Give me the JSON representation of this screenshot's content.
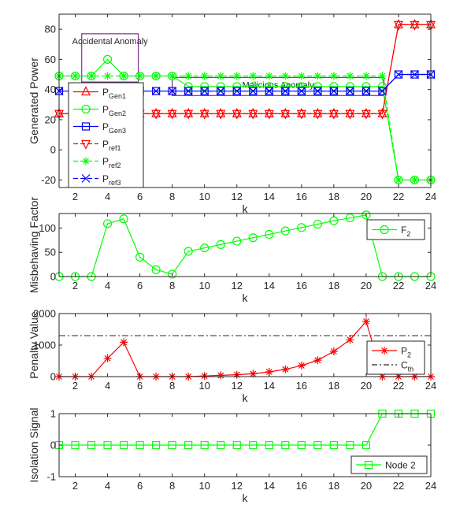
{
  "chart_data": [
    {
      "type": "line",
      "ylabel": "Generated Power",
      "xlabel": "k",
      "xlim": [
        1,
        24
      ],
      "ylim": [
        -25,
        90
      ],
      "xticks": [
        2,
        4,
        6,
        8,
        10,
        12,
        14,
        16,
        18,
        20,
        22,
        24
      ],
      "yticks": [
        -20,
        0,
        20,
        40,
        60,
        80
      ],
      "x": [
        1,
        2,
        3,
        4,
        5,
        6,
        7,
        8,
        9,
        10,
        11,
        12,
        13,
        14,
        15,
        16,
        17,
        18,
        19,
        20,
        21,
        22,
        23,
        24
      ],
      "series": [
        {
          "name": "P_Gen1",
          "color": "#ff0000",
          "marker": "triangle-up",
          "style": "solid",
          "values": [
            24,
            24,
            24,
            24,
            24,
            24,
            24,
            24,
            24,
            24,
            24,
            24,
            24,
            24,
            24,
            24,
            24,
            24,
            24,
            24,
            24,
            83,
            83,
            83
          ]
        },
        {
          "name": "P_Gen2",
          "color": "#00ff00",
          "marker": "circle",
          "style": "solid",
          "values": [
            49,
            49,
            49,
            60,
            49,
            49,
            49,
            49,
            42,
            42,
            42,
            42,
            42,
            42,
            42,
            42,
            42,
            42,
            42,
            42,
            42,
            -20,
            -20,
            -20
          ]
        },
        {
          "name": "P_Gen3",
          "color": "#0000ff",
          "marker": "square",
          "style": "solid",
          "values": [
            39,
            39,
            39,
            39,
            39,
            39,
            39,
            39,
            39,
            39,
            39,
            39,
            39,
            39,
            39,
            39,
            39,
            39,
            39,
            39,
            39,
            50,
            50,
            50
          ]
        },
        {
          "name": "P_ref1",
          "color": "#ff0000",
          "marker": "triangle-down",
          "style": "dashed",
          "values": [
            24,
            24,
            24,
            24,
            24,
            24,
            24,
            24,
            24,
            24,
            24,
            24,
            24,
            24,
            24,
            24,
            24,
            24,
            24,
            24,
            24,
            83,
            83,
            83
          ]
        },
        {
          "name": "P_ref2",
          "color": "#00ff00",
          "marker": "star",
          "style": "dashed",
          "values": [
            49,
            49,
            49,
            49,
            49,
            49,
            49,
            49,
            49,
            49,
            49,
            49,
            49,
            49,
            49,
            49,
            49,
            49,
            49,
            49,
            49,
            -20,
            -20,
            -20
          ]
        },
        {
          "name": "P_ref3",
          "color": "#0000ff",
          "marker": "x",
          "style": "dashed",
          "values": [
            39,
            39,
            39,
            39,
            39,
            39,
            39,
            39,
            39,
            39,
            39,
            39,
            39,
            39,
            39,
            39,
            39,
            39,
            39,
            39,
            39,
            50,
            50,
            50
          ]
        }
      ],
      "legend": {
        "location": "left",
        "entries": [
          {
            "main": "P",
            "sub": "Gen1"
          },
          {
            "main": "P",
            "sub": "Gen2"
          },
          {
            "main": "P",
            "sub": "Gen3"
          },
          {
            "main": "P",
            "sub": "ref1"
          },
          {
            "main": "P",
            "sub": "ref2"
          },
          {
            "main": "P",
            "sub": "ref3"
          }
        ]
      },
      "annotations": [
        {
          "text": "Accidental Anomaly",
          "box_x": [
            2.4,
            5.9
          ],
          "box_y": [
            45,
            77
          ],
          "box_color": "#7e2f8e"
        },
        {
          "text": "Malicious Anomaly",
          "box_x": [
            8,
            21.1
          ],
          "box_y": [
            36,
            48
          ],
          "box_color": "#7e2f8e"
        }
      ]
    },
    {
      "type": "line",
      "ylabel": "Misbehaving Factor",
      "xlabel": "k",
      "xlim": [
        1,
        24
      ],
      "ylim": [
        0,
        130
      ],
      "xticks": [
        2,
        4,
        6,
        8,
        10,
        12,
        14,
        16,
        18,
        20,
        22,
        24
      ],
      "yticks": [
        0,
        50,
        100
      ],
      "x": [
        1,
        2,
        3,
        4,
        5,
        6,
        7,
        8,
        9,
        10,
        11,
        12,
        13,
        14,
        15,
        16,
        17,
        18,
        19,
        20,
        21,
        22,
        23,
        24
      ],
      "series": [
        {
          "name": "F_2",
          "color": "#00ff00",
          "marker": "circle",
          "style": "solid",
          "values": [
            0,
            0,
            0,
            109,
            119,
            40,
            14,
            5,
            52,
            59,
            66,
            73,
            80,
            87,
            94,
            101,
            108,
            115,
            121,
            127,
            0,
            0,
            0,
            0
          ]
        }
      ],
      "legend": {
        "location": "top-right",
        "entries": [
          {
            "main": "F",
            "sub": "2"
          }
        ]
      }
    },
    {
      "type": "line",
      "ylabel": "Penalty Value",
      "xlabel": "k",
      "xlim": [
        1,
        24
      ],
      "ylim": [
        0,
        2000
      ],
      "xticks": [
        2,
        4,
        6,
        8,
        10,
        12,
        14,
        16,
        18,
        20,
        22,
        24
      ],
      "yticks": [
        0,
        1000,
        2000
      ],
      "x": [
        1,
        2,
        3,
        4,
        5,
        6,
        7,
        8,
        9,
        10,
        11,
        12,
        13,
        14,
        15,
        16,
        17,
        18,
        19,
        20,
        21,
        22,
        23,
        24
      ],
      "series": [
        {
          "name": "P_2",
          "color": "#ff0000",
          "marker": "star",
          "style": "solid",
          "values": [
            0,
            0,
            0,
            580,
            1090,
            0,
            0,
            0,
            0,
            20,
            40,
            60,
            90,
            150,
            230,
            350,
            520,
            800,
            1170,
            1750,
            0,
            0,
            0,
            0
          ]
        }
      ],
      "threshold": {
        "name": "C_th",
        "value": 1300,
        "color": "#262626",
        "style": "dash-dot"
      },
      "legend": {
        "location": "top-right",
        "entries": [
          {
            "main": "P",
            "sub": "2"
          },
          {
            "main": "C",
            "sub": "th"
          }
        ]
      }
    },
    {
      "type": "line",
      "ylabel": "Isolation Signal",
      "xlabel": "k",
      "xlim": [
        1,
        24
      ],
      "ylim": [
        -1,
        1
      ],
      "xticks": [
        2,
        4,
        6,
        8,
        10,
        12,
        14,
        16,
        18,
        20,
        22,
        24
      ],
      "yticks": [
        -1,
        0,
        1
      ],
      "x": [
        1,
        2,
        3,
        4,
        5,
        6,
        7,
        8,
        9,
        10,
        11,
        12,
        13,
        14,
        15,
        16,
        17,
        18,
        19,
        20,
        21,
        22,
        23,
        24
      ],
      "series": [
        {
          "name": "Node 2",
          "color": "#00ff00",
          "marker": "square",
          "style": "solid",
          "values": [
            0,
            0,
            0,
            0,
            0,
            0,
            0,
            0,
            0,
            0,
            0,
            0,
            0,
            0,
            0,
            0,
            0,
            0,
            0,
            0,
            1,
            1,
            1,
            1
          ]
        }
      ],
      "legend": {
        "location": "bottom-right",
        "entries": [
          {
            "main": "Node 2",
            "sub": ""
          }
        ]
      }
    }
  ]
}
